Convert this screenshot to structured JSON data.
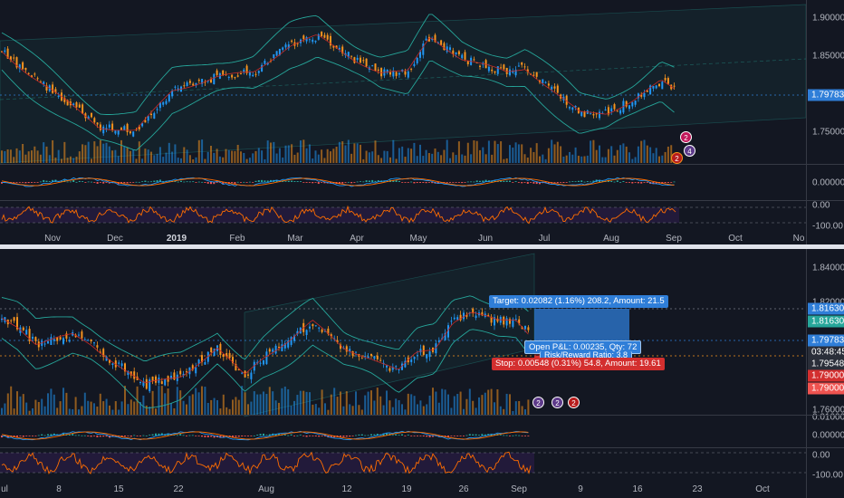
{
  "top_chart": {
    "price_ticks": [
      "1.90000",
      "1.85000",
      "1.75000"
    ],
    "last_price_tag": "1.79783",
    "macd_tick": "0.00000",
    "rsi_ticks": [
      "0.00",
      "-100.00"
    ],
    "time_labels": [
      "Nov",
      "Dec",
      "2019",
      "Feb",
      "Mar",
      "Apr",
      "May",
      "Jun",
      "Jul",
      "Aug",
      "Sep",
      "Oct",
      "No"
    ],
    "year_label": "2019",
    "event_markers": [
      "2",
      "4",
      "2"
    ]
  },
  "bottom_chart": {
    "price_ticks": [
      "1.84000",
      "1.82000",
      "1.76000"
    ],
    "macd_ticks": [
      "0.01000",
      "0.00000"
    ],
    "rsi_ticks": [
      "0.00",
      "-100.00"
    ],
    "price_tags": [
      {
        "label": "1.81630",
        "color": "#2f7ed8"
      },
      {
        "label": "1.81630",
        "color": "#26a69a"
      },
      {
        "label": "1.79783",
        "color": "#2f7ed8"
      },
      {
        "label": "03:48:45",
        "color": "#2a2e39"
      },
      {
        "label": "1.79548",
        "color": "#2a2e39"
      },
      {
        "label": "1.79000",
        "color": "#d32f2f"
      },
      {
        "label": "1.79000",
        "color": "#ef5350"
      }
    ],
    "target_badge": "Target: 0.02082 (1.16%) 208.2, Amount: 21.5",
    "pnl_badge": "Open P&L: 0.00235, Qty: 72",
    "risk_badge": "Risk/Reward Ratio: 3.8",
    "stop_badge": "Stop: 0.00548 (0.31%) 54.8, Amount: 19.61",
    "time_labels": [
      "ul",
      "8",
      "15",
      "22",
      "Aug",
      "12",
      "19",
      "26",
      "Sep",
      "9",
      "16",
      "23",
      "Oct"
    ],
    "event_markers": [
      "2",
      "2",
      "2"
    ]
  },
  "colors": {
    "up": "#2196f3",
    "down": "#f7931e",
    "band": "#26a69a",
    "target_zone": "#2f7ed8",
    "stop_color": "#d32f2f",
    "macd_line": "#2196f3",
    "signal_line": "#ff6d00",
    "rsi_fill": "#2a1d45"
  }
}
